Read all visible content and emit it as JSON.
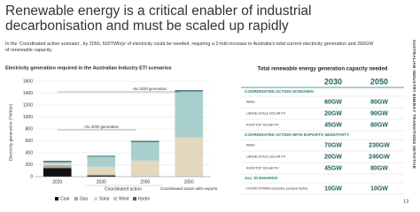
{
  "header": {
    "title": "Renewable energy is a critical enabler of industrial decarbonisation and must be scaled up rapidly",
    "subtitle": "In the ‘Coordinated action scenario’, by 2050, 600TWh/yr of electricity could be needed, requiring a 2-fold increase in Australia's total current electricity generation and 260GW of renewable capacity."
  },
  "chart_data": {
    "type": "bar",
    "stacked": true,
    "title": "Electricity generation required in the Australian Industry ETI scenarios",
    "y_label": "Electricity generation (TWh/yr)",
    "categories": [
      "2020",
      "2030",
      "2050",
      "2050"
    ],
    "groups": [
      "Coordinated action",
      "Coordinated action with exports"
    ],
    "series": [
      {
        "name": "Coal",
        "color": "#111111",
        "values": [
          145,
          20,
          0,
          0
        ]
      },
      {
        "name": "Gas",
        "color": "#a6a6a6",
        "values": [
          45,
          15,
          0,
          0
        ]
      },
      {
        "name": "Solar",
        "color": "#e3d7bd",
        "values": [
          30,
          130,
          270,
          660
        ]
      },
      {
        "name": "Wind",
        "color": "#a8cfcd",
        "values": [
          25,
          170,
          310,
          770
        ]
      },
      {
        "name": "Hydro",
        "color": "#2f6f6b",
        "values": [
          20,
          15,
          20,
          20
        ]
      }
    ],
    "annotations": [
      "~5x 2020 generation",
      ">2x 2020 generation"
    ],
    "ylim": [
      0,
      1600
    ],
    "yticks": [
      0,
      200,
      400,
      600,
      800,
      1000,
      1200,
      1400,
      1600
    ],
    "grid": true
  },
  "table": {
    "title": "Total renewable energy generation capacity needed",
    "columns": [
      "2030",
      "2050"
    ],
    "sections": [
      {
        "title": "COORDINATED ACTION SCENARIO",
        "rows": [
          [
            "WIND",
            "60GW",
            "80GW"
          ],
          [
            "LARGE-SCALE SOLAR PV",
            "20GW",
            "90GW"
          ],
          [
            "ROOFTOP SOLAR PV",
            "45GW",
            "80GW"
          ]
        ]
      },
      {
        "title": "COORDINATED ACTION WITH EXPORTS SENSITIVITY",
        "rows": [
          [
            "WIND",
            "70GW",
            "230GW"
          ],
          [
            "LARGE-SCALE SOLAR PV",
            "20GW",
            "240GW"
          ],
          [
            "ROOFTOP SOLAR PV",
            "45GW",
            "80GW"
          ]
        ]
      },
      {
        "title": "ALL SCENARIOS",
        "rows": [
          [
            "HYDRO POWER (excludes pumped hydro)",
            "10GW",
            "10GW"
          ]
        ]
      }
    ]
  },
  "sidebar": "AUSTRALIAN INDUSTRY ENERGY TRANSITIONS INITIATIVE",
  "page_number": "13"
}
